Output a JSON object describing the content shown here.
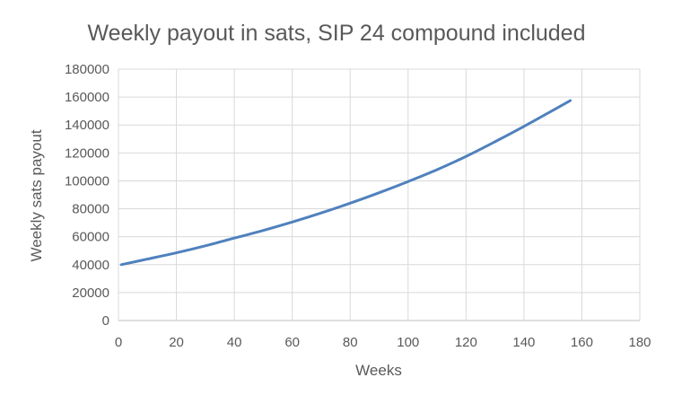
{
  "chart_data": {
    "type": "line",
    "title": "Weekly payout in sats, SIP 24 compound included",
    "xlabel": "Weeks",
    "ylabel": "Weekly sats payout",
    "xlim": [
      0,
      180
    ],
    "ylim": [
      0,
      180000
    ],
    "x_ticks": [
      "0",
      "20",
      "40",
      "60",
      "80",
      "100",
      "120",
      "140",
      "160",
      "180"
    ],
    "y_ticks": [
      "0",
      "20000",
      "40000",
      "60000",
      "80000",
      "100000",
      "120000",
      "140000",
      "160000",
      "180000"
    ],
    "grid": true,
    "legend": "none",
    "series": [
      {
        "color": "#4f81bd",
        "x": [
          1,
          10,
          20,
          30,
          40,
          50,
          60,
          70,
          80,
          90,
          100,
          110,
          120,
          130,
          140,
          150,
          156
        ],
        "y": [
          40000,
          44000,
          48500,
          53500,
          59000,
          64500,
          70500,
          77000,
          84000,
          91500,
          99500,
          108000,
          117500,
          128000,
          139000,
          150500,
          157500
        ]
      }
    ]
  }
}
